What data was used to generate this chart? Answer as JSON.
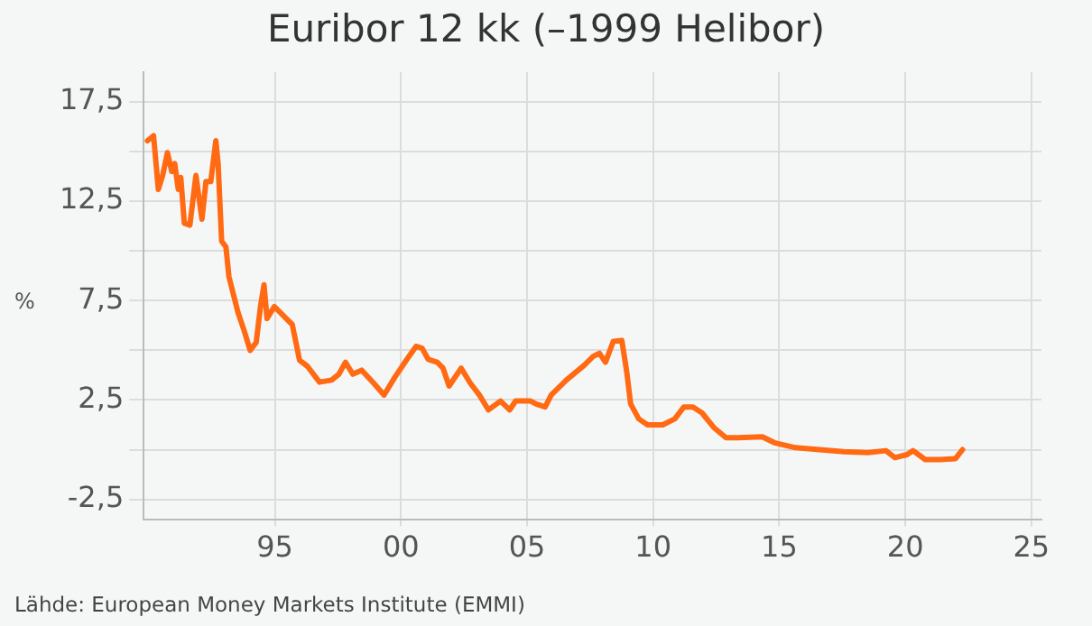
{
  "chart_data": {
    "type": "line",
    "title": "Euribor 12 kk (–1999 Helibor)",
    "ylabel": "%",
    "annotations": [
      "Lähde: European Money Markets Institute (EMMI)"
    ],
    "xlim": [
      1989.8,
      2025.4
    ],
    "ylim": [
      -3.5,
      19
    ],
    "xticks": [
      {
        "value": 1995,
        "label": "95"
      },
      {
        "value": 2000,
        "label": "00"
      },
      {
        "value": 2005,
        "label": "05"
      },
      {
        "value": 2010,
        "label": "10"
      },
      {
        "value": 2015,
        "label": "15"
      },
      {
        "value": 2020,
        "label": "20"
      },
      {
        "value": 2025,
        "label": "25"
      }
    ],
    "yticks": [
      {
        "value": -2.5,
        "label": "-2,5"
      },
      {
        "value": 0,
        "label": null
      },
      {
        "value": 2.5,
        "label": "2,5"
      },
      {
        "value": 5,
        "label": null
      },
      {
        "value": 7.5,
        "label": "7,5"
      },
      {
        "value": 10,
        "label": null
      },
      {
        "value": 12.5,
        "label": "12,5"
      },
      {
        "value": 15,
        "label": null
      },
      {
        "value": 17.5,
        "label": "17,5"
      }
    ],
    "grid": true,
    "legend": false,
    "marker": "none",
    "line_style": "solid",
    "x": [
      1989.95,
      1990.19,
      1990.38,
      1990.55,
      1990.74,
      1990.91,
      1991.03,
      1991.17,
      1991.27,
      1991.41,
      1991.63,
      1991.87,
      1992.11,
      1992.27,
      1992.46,
      1992.66,
      1992.75,
      1992.89,
      1993.06,
      1993.18,
      1993.54,
      1993.78,
      1994.02,
      1994.26,
      1994.43,
      1994.57,
      1994.69,
      1994.98,
      1995.22,
      1995.45,
      1995.69,
      1995.98,
      1996.29,
      1996.77,
      1997.25,
      1997.54,
      1997.8,
      1998.09,
      1998.44,
      1998.92,
      1999.33,
      1999.76,
      2000.24,
      2000.6,
      2000.84,
      2001.08,
      2001.44,
      2001.67,
      2001.91,
      2002.39,
      2002.75,
      2003.11,
      2003.47,
      2003.95,
      2004.31,
      2004.55,
      2005.14,
      2005.36,
      2005.72,
      2005.96,
      2006.56,
      2007.27,
      2007.63,
      2007.87,
      2008.11,
      2008.42,
      2008.76,
      2008.95,
      2009.11,
      2009.43,
      2009.78,
      2010.38,
      2010.86,
      2011.22,
      2011.58,
      2011.94,
      2012.42,
      2012.89,
      2013.37,
      2014.33,
      2014.81,
      2015.65,
      2016.6,
      2017.56,
      2018.52,
      2019.23,
      2019.59,
      2020.07,
      2020.31,
      2020.79,
      2021.39,
      2021.99,
      2022.27
    ],
    "series": [
      {
        "color": "#ff6a13",
        "values": [
          15.55,
          15.8,
          13.1,
          13.8,
          14.95,
          14.0,
          14.4,
          13.1,
          13.7,
          11.4,
          11.3,
          13.8,
          11.6,
          13.5,
          13.5,
          15.55,
          14.4,
          10.5,
          10.2,
          8.7,
          6.9,
          6.0,
          5.0,
          5.4,
          7.2,
          8.3,
          6.6,
          7.2,
          6.9,
          6.6,
          6.3,
          4.5,
          4.2,
          3.4,
          3.5,
          3.8,
          4.4,
          3.8,
          4.0,
          3.35,
          2.75,
          3.65,
          4.55,
          5.2,
          5.1,
          4.55,
          4.4,
          4.1,
          3.2,
          4.1,
          3.35,
          2.75,
          2.0,
          2.45,
          2.0,
          2.45,
          2.45,
          2.3,
          2.15,
          2.75,
          3.5,
          4.25,
          4.7,
          4.85,
          4.4,
          5.45,
          5.5,
          3.95,
          2.3,
          1.55,
          1.25,
          1.25,
          1.55,
          2.15,
          2.15,
          1.85,
          1.1,
          0.6,
          0.6,
          0.65,
          0.35,
          0.1,
          0.0,
          -0.1,
          -0.15,
          -0.05,
          -0.4,
          -0.25,
          -0.05,
          -0.5,
          -0.5,
          -0.45,
          0.0
        ]
      }
    ]
  }
}
